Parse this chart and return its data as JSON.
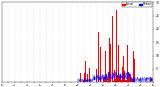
{
  "background_color": "#ffffff",
  "bar_color": "#ff0000",
  "median_color": "#0000ff",
  "legend_actual_color": "#ff0000",
  "legend_median_color": "#0000ff",
  "ylim": [
    0,
    30
  ],
  "ytick_labels": [
    "",
    "5",
    "10",
    "15",
    "20",
    "25",
    "30"
  ],
  "ytick_vals": [
    0,
    5,
    10,
    15,
    20,
    25,
    30
  ],
  "num_points": 1440,
  "figsize": [
    1.6,
    0.87
  ],
  "dpi": 100
}
